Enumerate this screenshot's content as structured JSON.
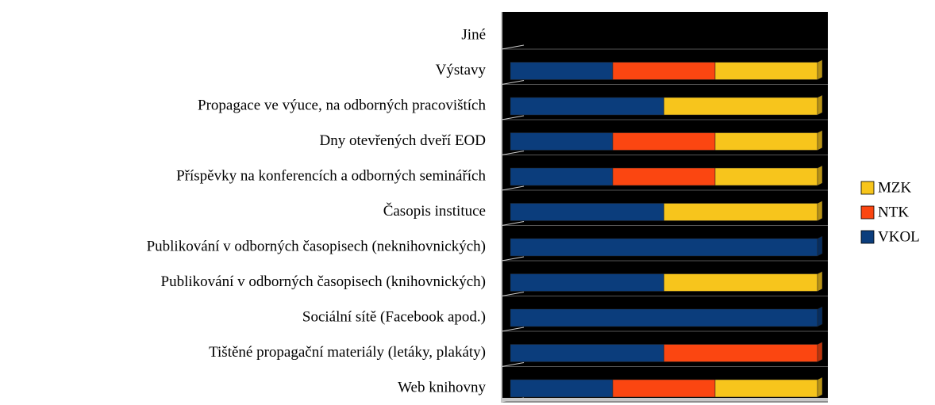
{
  "chart_data": {
    "type": "bar",
    "orientation": "horizontal",
    "stacking": "percent",
    "categories": [
      "Jiné",
      "Výstavy",
      "Propagace ve výuce, na odborných pracovištích",
      "Dny otevřených dveří EOD",
      "Příspěvky na konferencích a odborných seminářích",
      "Časopis instituce",
      "Publikování v odborných časopisech (neknihovnických)",
      "Publikování v odborných časopisech (knihovnických)",
      "Sociální sítě (Facebook apod.)",
      "Tištěné propagační materiály (letáky, plakáty)",
      "Web knihovny"
    ],
    "series": [
      {
        "name": "VKOL",
        "color": "#0b3d7c",
        "values": [
          0,
          1,
          1,
          1,
          1,
          1,
          1,
          1,
          1,
          1,
          1
        ]
      },
      {
        "name": "NTK",
        "color": "#fb4611",
        "values": [
          0,
          1,
          0,
          1,
          1,
          0,
          0,
          0,
          0,
          1,
          1
        ]
      },
      {
        "name": "MZK",
        "color": "#f7c51c",
        "values": [
          0,
          1,
          1,
          1,
          1,
          1,
          0,
          1,
          0,
          0,
          1
        ]
      }
    ],
    "legend": "right"
  }
}
